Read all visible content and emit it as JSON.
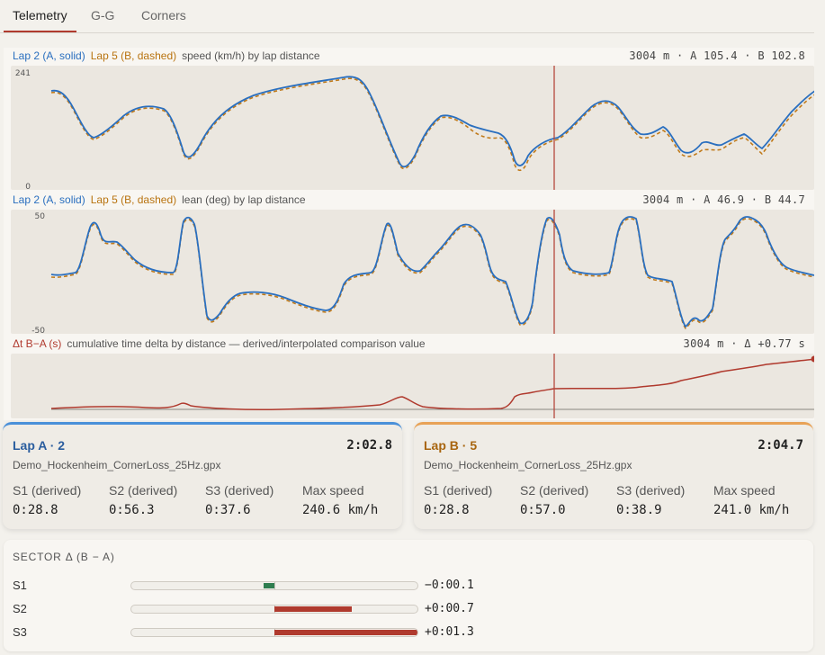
{
  "tabs": [
    {
      "label": "Telemetry",
      "active": true
    },
    {
      "label": "G-G",
      "active": false
    },
    {
      "label": "Corners",
      "active": false
    }
  ],
  "speed_chart": {
    "lap_a_label": "Lap 2 (A, solid)",
    "lap_b_label": "Lap 5 (B, dashed)",
    "description": "speed (km/h) by lap distance",
    "readout": "3004 m · A 105.4 · B 102.8",
    "ymax_label": "241",
    "ymin_label": "0"
  },
  "lean_chart": {
    "lap_a_label": "Lap 2 (A, solid)",
    "lap_b_label": "Lap 5 (B, dashed)",
    "description": "lean (deg) by lap distance",
    "readout": "3004 m · A 46.9 · B 44.7",
    "ymax_label": "50",
    "ymin_label": "-50"
  },
  "delta_chart": {
    "label": "Δt B−A (s)",
    "description": "cumulative time delta by distance — derived/interpolated comparison value",
    "readout": "3004 m · Δ +0.77 s"
  },
  "colors": {
    "lap_a": "#2a6fbf",
    "lap_b": "#c07a1a",
    "delta": "#b03a2e",
    "cursor": "#b5483c"
  },
  "lap_a": {
    "title": "Lap A · 2",
    "time": "2:02.8",
    "file": "Demo_Hockenheim_CornerLoss_25Hz.gpx",
    "stats": [
      {
        "label": "S1 (derived)",
        "value": "0:28.8"
      },
      {
        "label": "S2 (derived)",
        "value": "0:56.3"
      },
      {
        "label": "S3 (derived)",
        "value": "0:37.6"
      },
      {
        "label": "Max speed",
        "value": "240.6 km/h"
      }
    ]
  },
  "lap_b": {
    "title": "Lap B · 5",
    "time": "2:04.7",
    "file": "Demo_Hockenheim_CornerLoss_25Hz.gpx",
    "stats": [
      {
        "label": "S1 (derived)",
        "value": "0:28.8"
      },
      {
        "label": "S2 (derived)",
        "value": "0:57.0"
      },
      {
        "label": "S3 (derived)",
        "value": "0:38.9"
      },
      {
        "label": "Max speed",
        "value": "241.0 km/h"
      }
    ]
  },
  "sector_delta": {
    "title": "SECTOR Δ (B − A)",
    "rows": [
      {
        "name": "S1",
        "value": "−0:00.1",
        "delta_s": -0.1
      },
      {
        "name": "S2",
        "value": "+0:00.7",
        "delta_s": 0.7
      },
      {
        "name": "S3",
        "value": "+0:01.3",
        "delta_s": 1.3
      }
    ],
    "scale_max_s": 1.3
  }
}
